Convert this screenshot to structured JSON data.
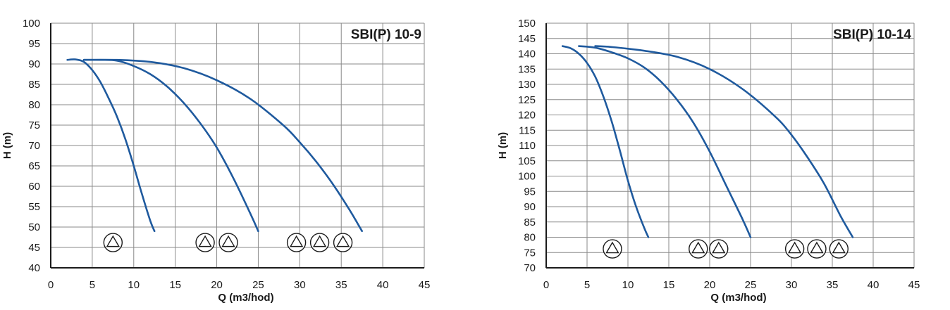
{
  "colors": {
    "curve": "#1f5a9e",
    "grid": "#8a8a8a",
    "axis": "#1a1a1a"
  },
  "icons": {
    "pump_symbol": "triangle-in-circle-icon"
  },
  "chart_data": [
    {
      "type": "line",
      "title": "SBI(P) 10-9",
      "xlabel": "Q (m3/hod)",
      "ylabel": "H (m)",
      "xlim": [
        0,
        45
      ],
      "ylim": [
        40,
        100
      ],
      "xticks": [
        0,
        5,
        10,
        15,
        20,
        25,
        30,
        35,
        40,
        45
      ],
      "yticks": [
        40,
        45,
        50,
        55,
        60,
        65,
        70,
        75,
        80,
        85,
        90,
        95,
        100
      ],
      "grid": true,
      "series": [
        {
          "x": [
            2,
            3,
            4,
            5,
            6,
            7,
            8,
            9,
            10,
            11,
            12,
            12.5
          ],
          "y": [
            91,
            91.1,
            90.5,
            88.5,
            85.5,
            81.5,
            77,
            71.5,
            65,
            58,
            51.5,
            49
          ]
        },
        {
          "x": [
            4,
            6,
            8,
            10,
            12,
            14,
            16,
            18,
            20,
            22,
            24,
            25
          ],
          "y": [
            91,
            91,
            90.8,
            89.5,
            87.5,
            84.5,
            80.5,
            75.5,
            69.5,
            62,
            53.5,
            49
          ]
        },
        {
          "x": [
            4,
            8,
            12,
            16,
            20,
            24,
            28,
            30,
            32,
            34,
            36,
            37.5
          ],
          "y": [
            91,
            91,
            90.5,
            89,
            86,
            81.5,
            75,
            70.8,
            66,
            60.5,
            54.2,
            49
          ]
        }
      ],
      "pump_groups": [
        {
          "count": 1,
          "x": [
            7.5
          ],
          "y": 46.2
        },
        {
          "count": 2,
          "x": [
            18.6,
            21.4
          ],
          "y": 46.2
        },
        {
          "count": 3,
          "x": [
            29.6,
            32.4,
            35.2
          ],
          "y": 46.2
        }
      ]
    },
    {
      "type": "line",
      "title": "SBI(P) 10-14",
      "xlabel": "Q (m3/hod)",
      "ylabel": "H (m)",
      "xlim": [
        0,
        45
      ],
      "ylim": [
        70,
        150
      ],
      "xticks": [
        0,
        5,
        10,
        15,
        20,
        25,
        30,
        35,
        40,
        45
      ],
      "yticks": [
        70,
        75,
        80,
        85,
        90,
        95,
        100,
        105,
        110,
        115,
        120,
        125,
        130,
        135,
        140,
        145,
        150
      ],
      "grid": true,
      "series": [
        {
          "x": [
            2,
            3,
            4,
            5,
            6,
            7,
            8,
            9,
            10,
            11,
            12,
            12.5
          ],
          "y": [
            142.5,
            141.8,
            140,
            137,
            132.5,
            126,
            118,
            108.5,
            98.5,
            90,
            83,
            80
          ]
        },
        {
          "x": [
            4,
            6,
            8,
            10,
            12,
            14,
            16,
            18,
            20,
            22,
            24,
            25
          ],
          "y": [
            142.5,
            142,
            140.5,
            138.5,
            135.5,
            131,
            125,
            117.5,
            108,
            97,
            86,
            80
          ]
        },
        {
          "x": [
            6,
            8,
            12,
            16,
            20,
            24,
            28,
            30,
            32,
            34,
            36,
            37.5
          ],
          "y": [
            142.5,
            142.2,
            141,
            139,
            135,
            128.5,
            119.5,
            113.5,
            106,
            97.5,
            87,
            80
          ]
        }
      ],
      "pump_groups": [
        {
          "count": 1,
          "x": [
            8.1
          ],
          "y": 76.2
        },
        {
          "count": 2,
          "x": [
            18.6,
            21.1
          ],
          "y": 76.2
        },
        {
          "count": 3,
          "x": [
            30.4,
            33.1,
            35.8
          ],
          "y": 76.2
        }
      ]
    }
  ]
}
